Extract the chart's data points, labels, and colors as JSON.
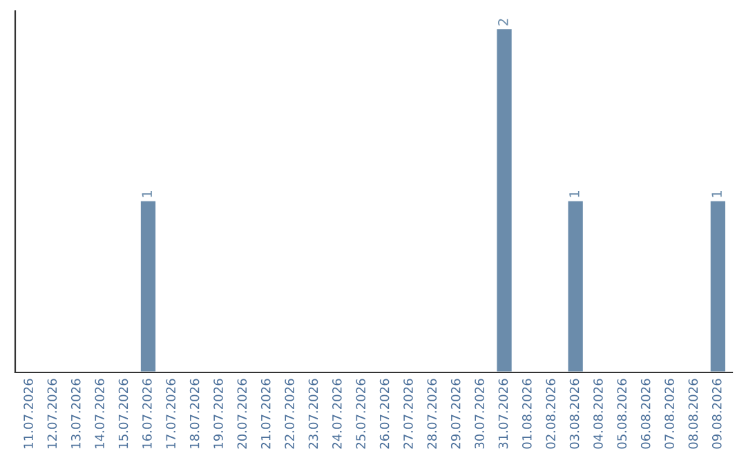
{
  "chart_data": {
    "type": "bar",
    "categories": [
      "11.07.2026",
      "12.07.2026",
      "13.07.2026",
      "14.07.2026",
      "15.07.2026",
      "16.07.2026",
      "17.07.2026",
      "18.07.2026",
      "19.07.2026",
      "20.07.2026",
      "21.07.2026",
      "22.07.2026",
      "23.07.2026",
      "24.07.2026",
      "25.07.2026",
      "26.07.2026",
      "27.07.2026",
      "28.07.2026",
      "29.07.2026",
      "30.07.2026",
      "31.07.2026",
      "01.08.2026",
      "02.08.2026",
      "03.08.2026",
      "04.08.2026",
      "05.08.2026",
      "06.08.2026",
      "07.08.2026",
      "08.08.2026",
      "09.08.2026"
    ],
    "values": [
      null,
      null,
      null,
      null,
      null,
      1,
      null,
      null,
      null,
      null,
      null,
      null,
      null,
      null,
      null,
      null,
      null,
      null,
      null,
      null,
      2,
      null,
      null,
      1,
      null,
      null,
      null,
      null,
      null,
      1
    ],
    "value_labels": [
      null,
      null,
      null,
      null,
      null,
      "1",
      null,
      null,
      null,
      null,
      null,
      null,
      null,
      null,
      null,
      null,
      null,
      null,
      null,
      null,
      "2",
      null,
      null,
      "1",
      null,
      null,
      null,
      null,
      null,
      "1"
    ],
    "color": "#6b8cab",
    "ylim": [
      0,
      2.1
    ],
    "grid": false,
    "legend": false
  }
}
